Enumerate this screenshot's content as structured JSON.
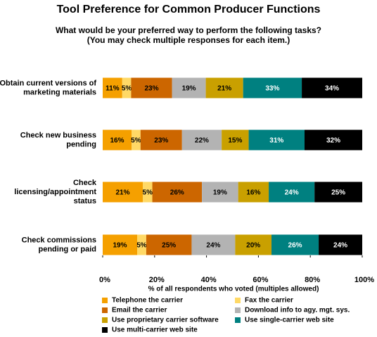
{
  "chart_data": {
    "type": "bar",
    "orientation": "horizontal",
    "stacked": "percent",
    "title": "Tool Preference for Common Producer Functions",
    "subtitle": [
      "What would be your preferred way to perform the following tasks?",
      "(You may check multiple responses for each item.)"
    ],
    "x_label": "% of all respondents who voted (multiples allowed)",
    "categories": [
      [
        "Obtain current versions of",
        "marketing materials"
      ],
      [
        "Check new business",
        "pending"
      ],
      [
        "Check",
        "licensing/appointment",
        "status"
      ],
      [
        "Check commissions",
        "pending or paid"
      ]
    ],
    "xlim": [
      0,
      100
    ],
    "xticks": [
      {
        "value": 0,
        "label": "0%"
      },
      {
        "value": 20,
        "label": "20%"
      },
      {
        "value": 40,
        "label": "40%"
      },
      {
        "value": 60,
        "label": "60%"
      },
      {
        "value": 80,
        "label": "80%"
      },
      {
        "value": 100,
        "label": "100%"
      }
    ],
    "grid": false,
    "legend": "bottom",
    "series": [
      {
        "name": "Telephone the carrier",
        "color": "#f5a000",
        "values": [
          11,
          16,
          21,
          19
        ],
        "value_labels": [
          "11%",
          "16%",
          "21%",
          "19%"
        ]
      },
      {
        "name": "Fax the carrier",
        "color": "#ffd966",
        "values": [
          5,
          5,
          5,
          5
        ],
        "value_labels": [
          "5%",
          "5%",
          "5%",
          "5%"
        ]
      },
      {
        "name": "Email the carrier",
        "color": "#cc6600",
        "values": [
          23,
          23,
          26,
          25
        ],
        "value_labels": [
          "23%",
          "23%",
          "26%",
          "25%"
        ]
      },
      {
        "name": "Download info to agy. mgt. sys.",
        "color": "#b3b3b3",
        "values": [
          19,
          22,
          19,
          24
        ],
        "value_labels": [
          "19%",
          "22%",
          "19%",
          "24%"
        ]
      },
      {
        "name": "Use proprietary carrier software",
        "color": "#c9a000",
        "values": [
          21,
          15,
          16,
          20
        ],
        "value_labels": [
          "21%",
          "15%",
          "16%",
          "20%"
        ]
      },
      {
        "name": "Use single-carrier web site",
        "color": "#008080",
        "values": [
          33,
          31,
          24,
          26
        ],
        "value_labels": [
          "33%",
          "31%",
          "24%",
          "26%"
        ]
      },
      {
        "name": "Use multi-carrier web site",
        "color": "#000000",
        "values": [
          34,
          32,
          25,
          24
        ],
        "value_labels": [
          "34%",
          "32%",
          "25%",
          "24%"
        ]
      }
    ]
  }
}
